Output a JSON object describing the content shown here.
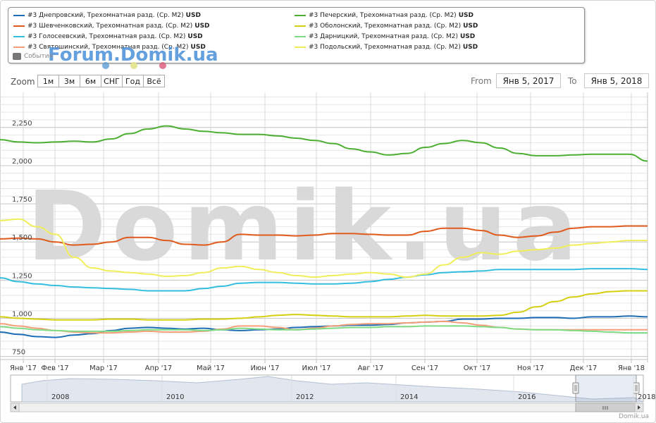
{
  "legend": {
    "items": [
      {
        "label": "#3 Днепровский, Трехомнатная разд. (Ср. М2)",
        "unit": "USD",
        "color": "#1f6eb5"
      },
      {
        "label": "#3 Шевченковский, Трехомнатная разд. (Ср. М2)",
        "unit": "USD",
        "color": "#e05a1c"
      },
      {
        "label": "#3 Голосеевский, Трехомнатная разд. (Ср. М2)",
        "unit": "USD",
        "color": "#33bde0"
      },
      {
        "label": "#3 Святошинский, Трехомнатная разд. (Ср. М2)",
        "unit": "USD",
        "color": "#f3a07a"
      },
      {
        "label": "#3 Печерский, Трехомнатная разд. (Ср. М2)",
        "unit": "USD",
        "color": "#4caf32"
      },
      {
        "label": "#3 Оболонский, Трехомнатная разд. (Ср. М2)",
        "unit": "USD",
        "color": "#d4cf10"
      },
      {
        "label": "#3 Дарницкий, Трехомнатная разд. (Ср. М2)",
        "unit": "USD",
        "color": "#7fdc84"
      },
      {
        "label": "#3 Подольский, Трехомнатная разд. (Ср. М2)",
        "unit": "USD",
        "color": "#f0ee5a"
      }
    ],
    "events_label": "События",
    "forum_logo": "Forum.Domik.ua"
  },
  "range_selector": {
    "zoom_label": "Zoom",
    "buttons": [
      "1м",
      "3м",
      "6м",
      "СНГ",
      "Год",
      "Всё"
    ],
    "from_label": "From",
    "from_value": "Янв 5, 2017",
    "to_label": "To",
    "to_value": "Янв 5, 2018"
  },
  "watermark": "Domik.ua",
  "credit": "Domik.ua",
  "chart_data": {
    "type": "line",
    "x_ticks": [
      "Янв '17",
      "Фев '17",
      "Мар '17",
      "Апр '17",
      "Май '17",
      "Июн '17",
      "Июл '17",
      "Авг '17",
      "Сен '17",
      "Окт '17",
      "Ноя '17",
      "Дек '17",
      "Янв '18"
    ],
    "y_ticks": [
      "750",
      "1,000",
      "1,250",
      "1,500",
      "1,750",
      "2,000",
      "2,250"
    ],
    "ylim": [
      730,
      2480
    ],
    "grid": true,
    "legend_position": "top",
    "series": [
      {
        "name": "#3 Днепровский, Трехомнатная разд. (Ср. М2) USD",
        "color": "#1f6eb5",
        "values": [
          910,
          895,
          880,
          875,
          890,
          900,
          920,
          935,
          940,
          935,
          930,
          935,
          925,
          920,
          925,
          930,
          940,
          945,
          950,
          955,
          955,
          960,
          970,
          975,
          980,
          995,
          995,
          1000,
          1000,
          1005,
          1005,
          1000,
          1010,
          1010,
          1015,
          1010
        ]
      },
      {
        "name": "#3 Шевченковский, Трехомнатная разд. (Ср. М2) USD",
        "color": "#e05a1c",
        "values": [
          1520,
          1525,
          1520,
          1500,
          1480,
          1485,
          1500,
          1530,
          1530,
          1510,
          1485,
          1480,
          1500,
          1550,
          1545,
          1545,
          1540,
          1545,
          1555,
          1555,
          1550,
          1545,
          1545,
          1570,
          1590,
          1590,
          1575,
          1545,
          1530,
          1540,
          1565,
          1590,
          1600,
          1600,
          1605,
          1605
        ]
      },
      {
        "name": "#3 Голосеевский, Трехомнатная разд. (Ср. М2) USD",
        "color": "#33bde0",
        "values": [
          1265,
          1240,
          1225,
          1215,
          1205,
          1200,
          1195,
          1190,
          1180,
          1180,
          1180,
          1195,
          1210,
          1230,
          1235,
          1235,
          1230,
          1225,
          1225,
          1230,
          1240,
          1255,
          1270,
          1285,
          1300,
          1305,
          1310,
          1320,
          1320,
          1320,
          1320,
          1320,
          1325,
          1325,
          1325,
          1320
        ]
      },
      {
        "name": "#3 Святошинский, Трехомнатная разд. (Ср. М2) USD",
        "color": "#f3a07a",
        "values": [
          965,
          950,
          935,
          920,
          910,
          905,
          905,
          910,
          915,
          910,
          910,
          915,
          930,
          950,
          950,
          940,
          925,
          935,
          950,
          960,
          965,
          965,
          970,
          975,
          980,
          970,
          955,
          940,
          930,
          925,
          925,
          925,
          925,
          925,
          925,
          925
        ]
      },
      {
        "name": "#3 Печерский, Трехомнатная разд. (Ср. М2) USD",
        "color": "#4caf32",
        "values": [
          2170,
          2155,
          2150,
          2155,
          2160,
          2155,
          2175,
          2210,
          2240,
          2260,
          2240,
          2225,
          2215,
          2205,
          2205,
          2195,
          2180,
          2165,
          2145,
          2110,
          2090,
          2070,
          2080,
          2120,
          2145,
          2165,
          2150,
          2115,
          2080,
          2065,
          2065,
          2070,
          2075,
          2075,
          2075,
          2030
        ]
      },
      {
        "name": "#3 Оболонский, Трехомнатная разд. (Ср. М2) USD",
        "color": "#d4cf10",
        "values": [
          1010,
          1000,
          995,
          990,
          990,
          990,
          995,
          995,
          990,
          990,
          990,
          995,
          995,
          1000,
          1010,
          1020,
          1025,
          1020,
          1015,
          1010,
          1010,
          1010,
          1015,
          1020,
          1015,
          1015,
          1015,
          1020,
          1040,
          1075,
          1110,
          1140,
          1160,
          1175,
          1180,
          1180
        ]
      },
      {
        "name": "#3 Дарницкий, Трехомнатная разд. (Ср. М2) USD",
        "color": "#7fdc84",
        "values": [
          945,
          935,
          925,
          920,
          915,
          915,
          915,
          920,
          925,
          925,
          925,
          920,
          925,
          935,
          930,
          925,
          925,
          930,
          935,
          940,
          940,
          945,
          945,
          950,
          950,
          950,
          945,
          940,
          930,
          925,
          925,
          920,
          915,
          910,
          905,
          905
        ]
      },
      {
        "name": "#3 Подольский, Трехомнатная разд. (Ср. М2) USD",
        "color": "#f0ee5a",
        "values": [
          1640,
          1650,
          1600,
          1550,
          1400,
          1330,
          1310,
          1300,
          1290,
          1275,
          1280,
          1300,
          1330,
          1340,
          1320,
          1300,
          1280,
          1270,
          1280,
          1290,
          1300,
          1290,
          1270,
          1290,
          1350,
          1400,
          1430,
          1420,
          1440,
          1450,
          1460,
          1480,
          1490,
          1500,
          1510,
          1510
        ]
      }
    ]
  },
  "navigator": {
    "years": [
      "2008",
      "2010",
      "2012",
      "2014",
      "2016",
      "2018"
    ]
  }
}
